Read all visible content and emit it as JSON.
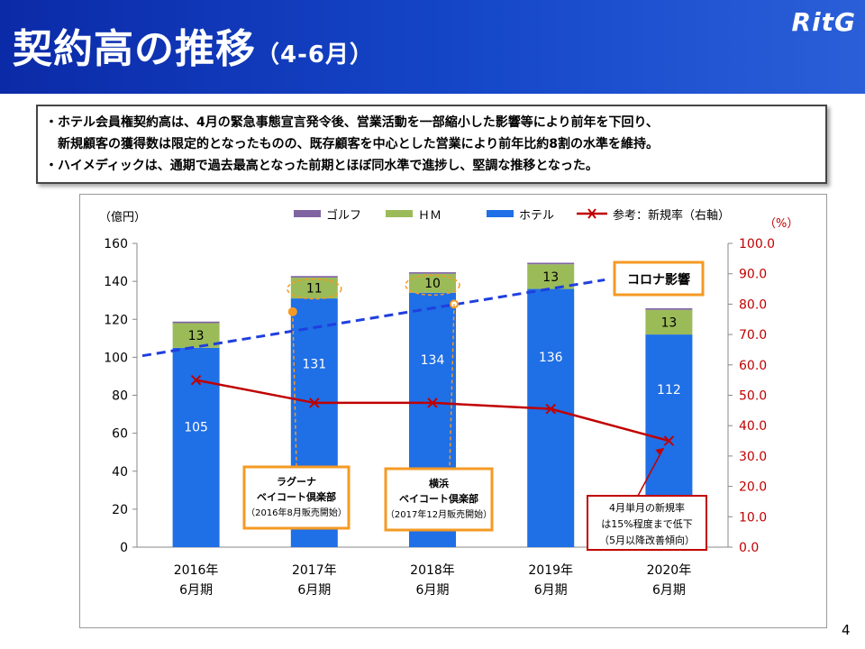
{
  "header": {
    "title": "契約高の推移",
    "subtitle": "（4-6月）",
    "logo_text": "RitG",
    "color": "#1547c9"
  },
  "summary": {
    "lines": [
      "・ホテル会員権契約高は、4月の緊急事態宣言発令後、営業活動を一部縮小した影響等により前年を下回り、",
      "　新規顧客の獲得数は限定的となったものの、既存顧客を中心とした営業により前年比約8割の水準を維持。",
      "・ハイメディックは、通期で過去最高となった前期とほぼ同水準で進捗し、堅調な推移となった。"
    ]
  },
  "chart_data": {
    "type": "bar",
    "stacked": true,
    "categories": [
      [
        "2016年",
        "6月期"
      ],
      [
        "2017年",
        "6月期"
      ],
      [
        "2018年",
        "6月期"
      ],
      [
        "2019年",
        "6月期"
      ],
      [
        "2020年",
        "6月期"
      ]
    ],
    "series": [
      {
        "name": "ホテル",
        "values": [
          105,
          131,
          134,
          136,
          112
        ],
        "color": "#1f6fe6"
      },
      {
        "name": "ＨＭ",
        "values": [
          13,
          11,
          10,
          13,
          13
        ],
        "color": "#9bbb59"
      },
      {
        "name": "ゴルフ",
        "values": [
          0.8,
          0.8,
          0.8,
          0.8,
          0.8
        ],
        "color": "#8064a2"
      }
    ],
    "line_series": {
      "name": "参考：新規率（右軸）",
      "values": [
        55.0,
        47.5,
        47.5,
        45.5,
        35.0
      ],
      "color": "#c00000",
      "axis": "right"
    },
    "left_axis": {
      "unit": "（億円）",
      "min": 0,
      "max": 160,
      "ticks": [
        0,
        20,
        40,
        60,
        80,
        100,
        120,
        140,
        160
      ]
    },
    "right_axis": {
      "unit": "（%）",
      "min": 0,
      "max": 100,
      "ticks": [
        "0.0",
        "10.0",
        "20.0",
        "30.0",
        "40.0",
        "50.0",
        "60.0",
        "70.0",
        "80.0",
        "90.0",
        "100.0"
      ],
      "color": "#c00000"
    },
    "trend_line": {
      "from_value": 63.0,
      "to_value": 88.0,
      "color": "#1f3fe0",
      "style": "dashed"
    },
    "legend_position": "top",
    "grid": false,
    "annotations": {
      "corona": {
        "text": "コロナ影響",
        "border_color": "#f59a23"
      },
      "lagoona": {
        "lines": [
          "ラグーナ",
          "ベイコート倶楽部",
          "（2016年8月販売開始）"
        ],
        "target_category": 1,
        "border_color": "#f59a23"
      },
      "yokohama": {
        "lines": [
          "横浜",
          "ベイコート倶楽部",
          "（2017年12月販売開始）"
        ],
        "target_category": 2,
        "border_color": "#f59a23"
      },
      "april_rate": {
        "lines": [
          "4月単月の新規率",
          "は15%程度まで低下",
          "（5月以降改善傾向）"
        ],
        "target_category": 4,
        "border_color": "#c00000"
      }
    }
  },
  "page_number": "4"
}
